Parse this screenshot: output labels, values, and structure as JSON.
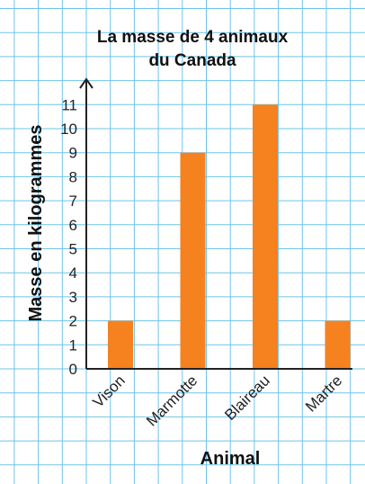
{
  "chart_data": {
    "type": "bar",
    "title_line1": "La masse de 4 animaux",
    "title_line2": "du Canada",
    "xlabel": "Animal",
    "ylabel": "Masse en kilogrammes",
    "categories": [
      "Vison",
      "Marmotte",
      "Blaireau",
      "Martre"
    ],
    "values": [
      2,
      9,
      11,
      2
    ],
    "ylim": [
      0,
      11
    ],
    "yticks": [
      0,
      1,
      2,
      3,
      4,
      5,
      6,
      7,
      8,
      9,
      10,
      11
    ],
    "grid": true,
    "bar_color": "#f5821f",
    "grid_color": "#6ec3ea"
  }
}
